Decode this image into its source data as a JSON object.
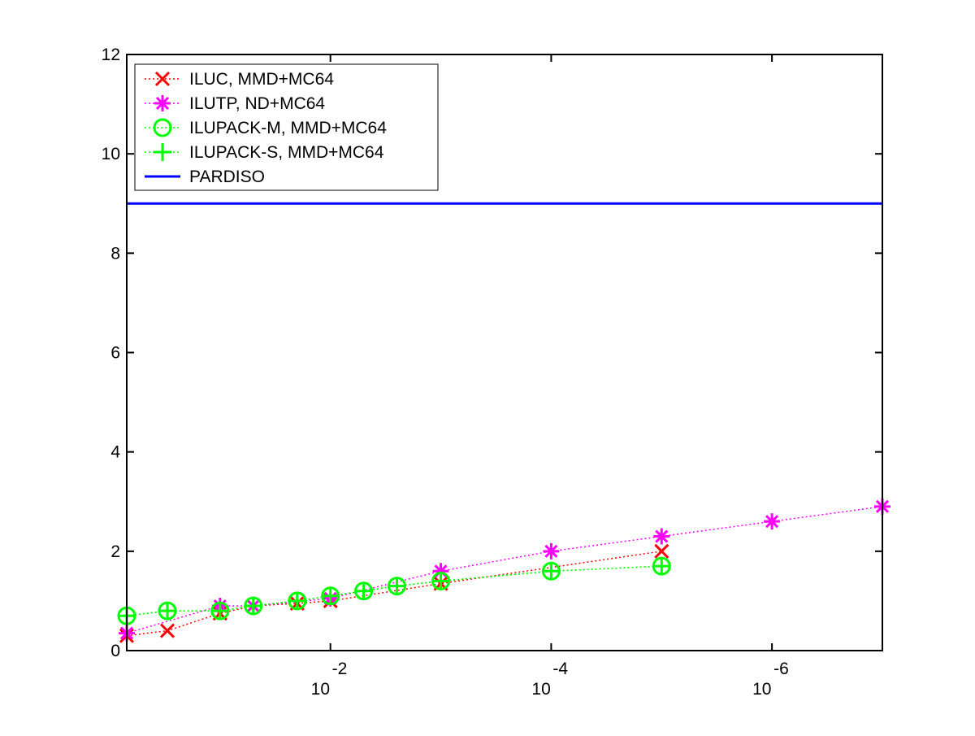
{
  "chart_data": {
    "type": "line",
    "title": "",
    "xlabel": "",
    "ylabel": "",
    "x_scale": "log",
    "x_axis_direction": "decreasing",
    "xlim": [
      0.7,
      1e-07
    ],
    "ylim": [
      0,
      12
    ],
    "grid": false,
    "legend_position": "top-left",
    "y_ticks": [
      0,
      2,
      4,
      6,
      8,
      10,
      12
    ],
    "x_ticks": [
      {
        "value": 0.01,
        "base": "10",
        "exponent": "-2"
      },
      {
        "value": 0.0001,
        "base": "10",
        "exponent": "-4"
      },
      {
        "value": 1e-06,
        "base": "10",
        "exponent": "-6"
      }
    ],
    "series": [
      {
        "name": "ILUC, MMD+MC64",
        "color": "#ff0000",
        "marker": "x",
        "line_style": "dotted",
        "x": [
          0.7,
          0.3,
          0.1,
          0.05,
          0.02,
          0.01,
          0.001,
          1e-05
        ],
        "y": [
          0.3,
          0.4,
          0.75,
          0.9,
          0.95,
          1.0,
          1.35,
          2.0
        ]
      },
      {
        "name": "ILUTP,  ND+MC64",
        "color": "#ff00ff",
        "marker": "star",
        "line_style": "dotted",
        "x": [
          0.7,
          0.1,
          0.05,
          0.01,
          0.001,
          0.0001,
          1e-05,
          1e-06,
          1e-07
        ],
        "y": [
          0.35,
          0.9,
          0.9,
          1.05,
          1.6,
          2.0,
          2.3,
          2.6,
          2.9
        ]
      },
      {
        "name": "ILUPACK-M, MMD+MC64",
        "color": "#00ff00",
        "marker": "circle",
        "line_style": "dotted",
        "x": [
          0.7,
          0.3,
          0.1,
          0.05,
          0.02,
          0.01,
          0.005,
          0.0025,
          0.001,
          0.0001,
          1e-05
        ],
        "y": [
          0.7,
          0.8,
          0.8,
          0.9,
          1.0,
          1.1,
          1.2,
          1.3,
          1.4,
          1.6,
          1.7
        ]
      },
      {
        "name": "ILUPACK-S, MMD+MC64",
        "color": "#00ff00",
        "marker": "plus",
        "line_style": "dotted",
        "x": [
          0.7,
          0.3,
          0.1,
          0.05,
          0.02,
          0.01,
          0.005,
          0.0025,
          0.001,
          0.0001,
          1e-05
        ],
        "y": [
          0.7,
          0.8,
          0.8,
          0.9,
          1.0,
          1.1,
          1.2,
          1.3,
          1.4,
          1.6,
          1.7
        ]
      },
      {
        "name": "PARDISO",
        "color": "#0000ff",
        "marker": "none",
        "line_style": "solid",
        "x": [
          0.7,
          1e-07
        ],
        "y": [
          9,
          9
        ]
      }
    ]
  }
}
